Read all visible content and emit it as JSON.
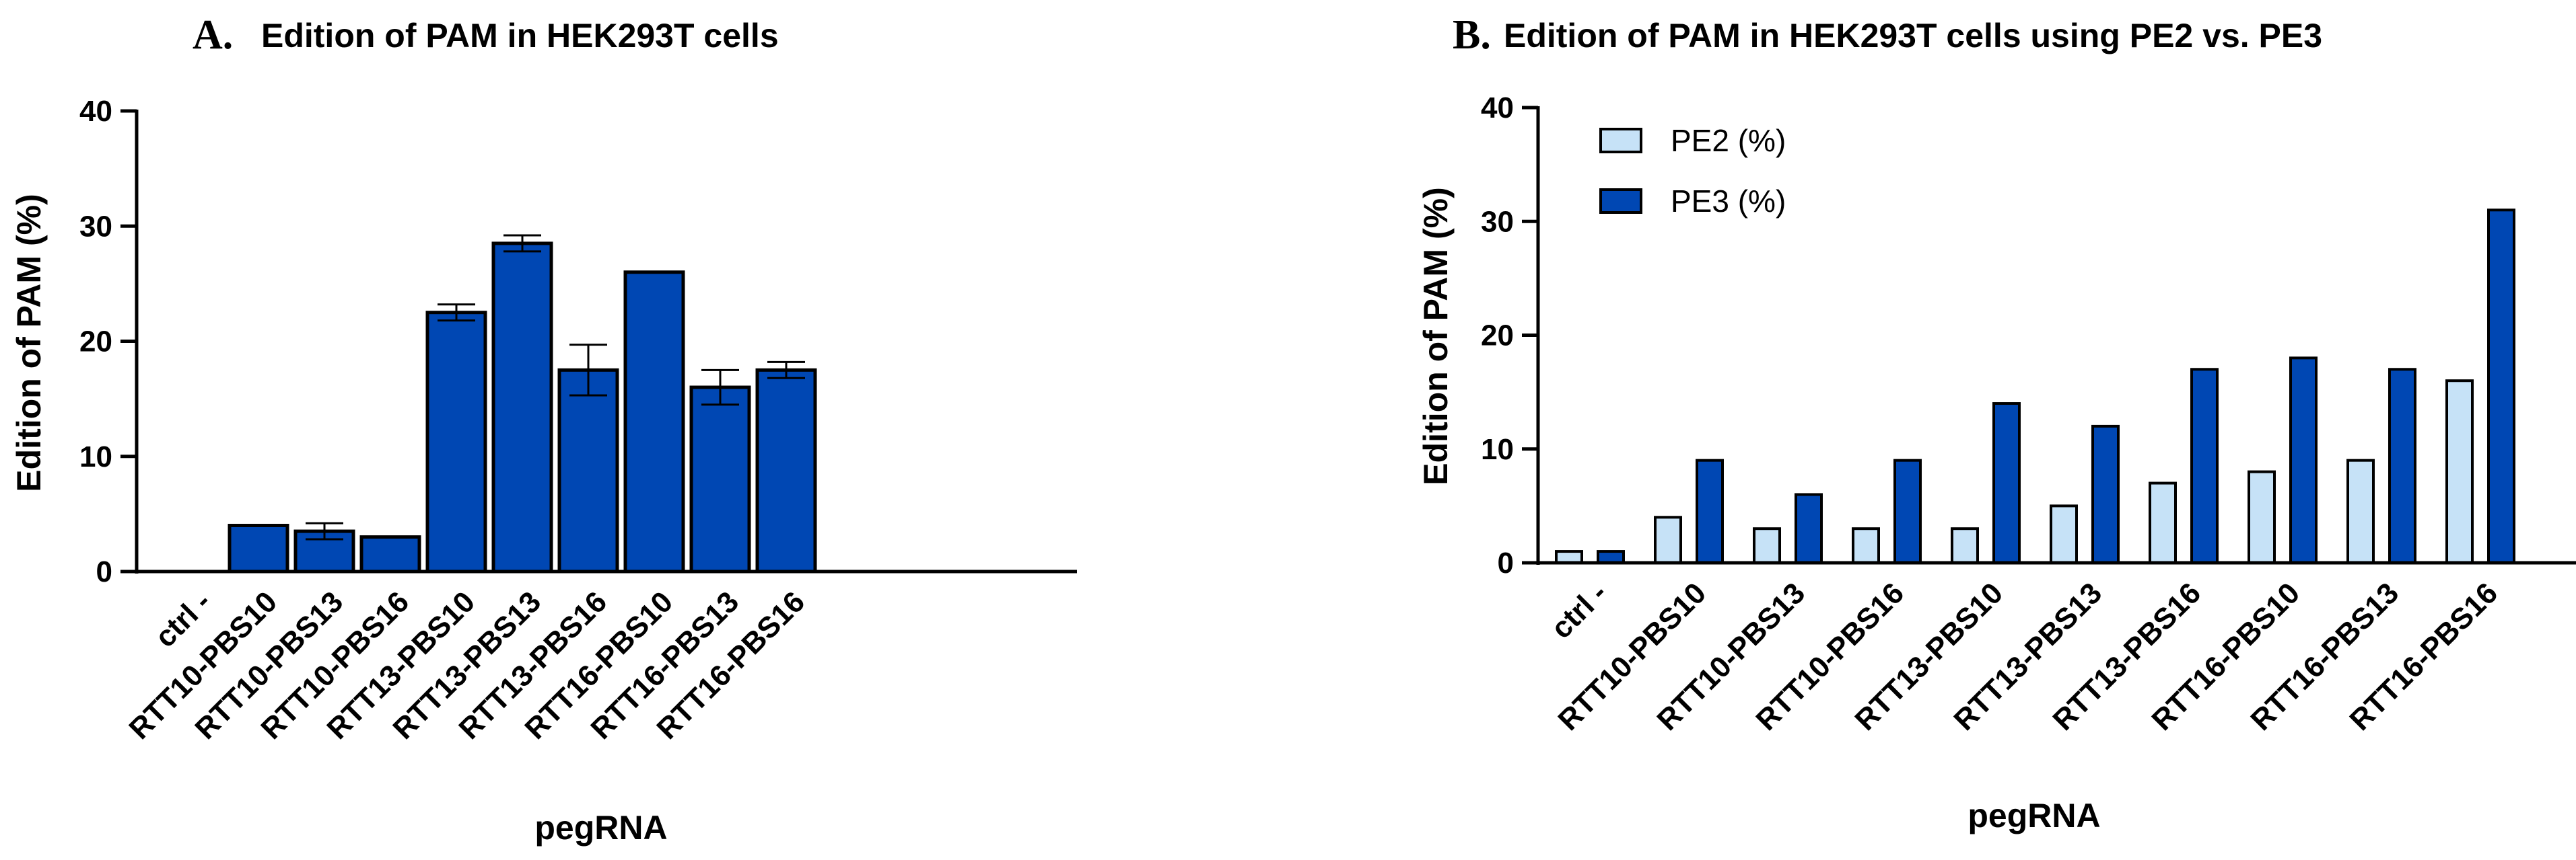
{
  "chart_data": [
    {
      "type": "bar",
      "panel_letter": "A.",
      "title": "Edition of PAM in HEK293T cells",
      "xlabel": "pegRNA",
      "ylabel": "Edition of PAM (%)",
      "ylim": [
        0,
        40
      ],
      "yticks": [
        0,
        10,
        20,
        30,
        40
      ],
      "categories": [
        "ctrl -",
        "RTT10-PBS10",
        "RTT10-PBS13",
        "RTT10-PBS16",
        "RTT13-PBS10",
        "RTT13-PBS13",
        "RTT13-PBS16",
        "RTT16-PBS10",
        "RTT16-PBS13",
        "RTT16-PBS16"
      ],
      "series": [
        {
          "name": "Edition of PAM",
          "color": "#0047b3",
          "values": [
            0,
            4,
            3.5,
            3,
            22.5,
            28.5,
            17.5,
            26,
            16,
            17.5
          ],
          "errors": [
            0,
            0,
            0.7,
            0,
            0.7,
            0.7,
            2.2,
            0,
            1.5,
            0.7
          ]
        }
      ]
    },
    {
      "type": "bar",
      "panel_letter": "B.",
      "title": "Edition of PAM in HEK293T cells using PE2 vs. PE3",
      "xlabel": "pegRNA",
      "ylabel": "Edition of PAM (%)",
      "ylim": [
        0,
        40
      ],
      "yticks": [
        0,
        10,
        20,
        30,
        40
      ],
      "legend_position": "top-left",
      "categories": [
        "ctrl -",
        "RTT10-PBS10",
        "RTT10-PBS13",
        "RTT10-PBS16",
        "RTT13-PBS10",
        "RTT13-PBS13",
        "RTT13-PBS16",
        "RTT16-PBS10",
        "RTT16-PBS13",
        "RTT16-PBS16"
      ],
      "series": [
        {
          "name": "PE2 (%)",
          "color": "#c6e2f7",
          "values": [
            1,
            4,
            3,
            3,
            3,
            5,
            7,
            8,
            9,
            16
          ]
        },
        {
          "name": "PE3 (%)",
          "color": "#0047b3",
          "values": [
            1,
            9,
            6,
            9,
            14,
            12,
            17,
            18,
            17,
            31
          ]
        }
      ]
    }
  ]
}
